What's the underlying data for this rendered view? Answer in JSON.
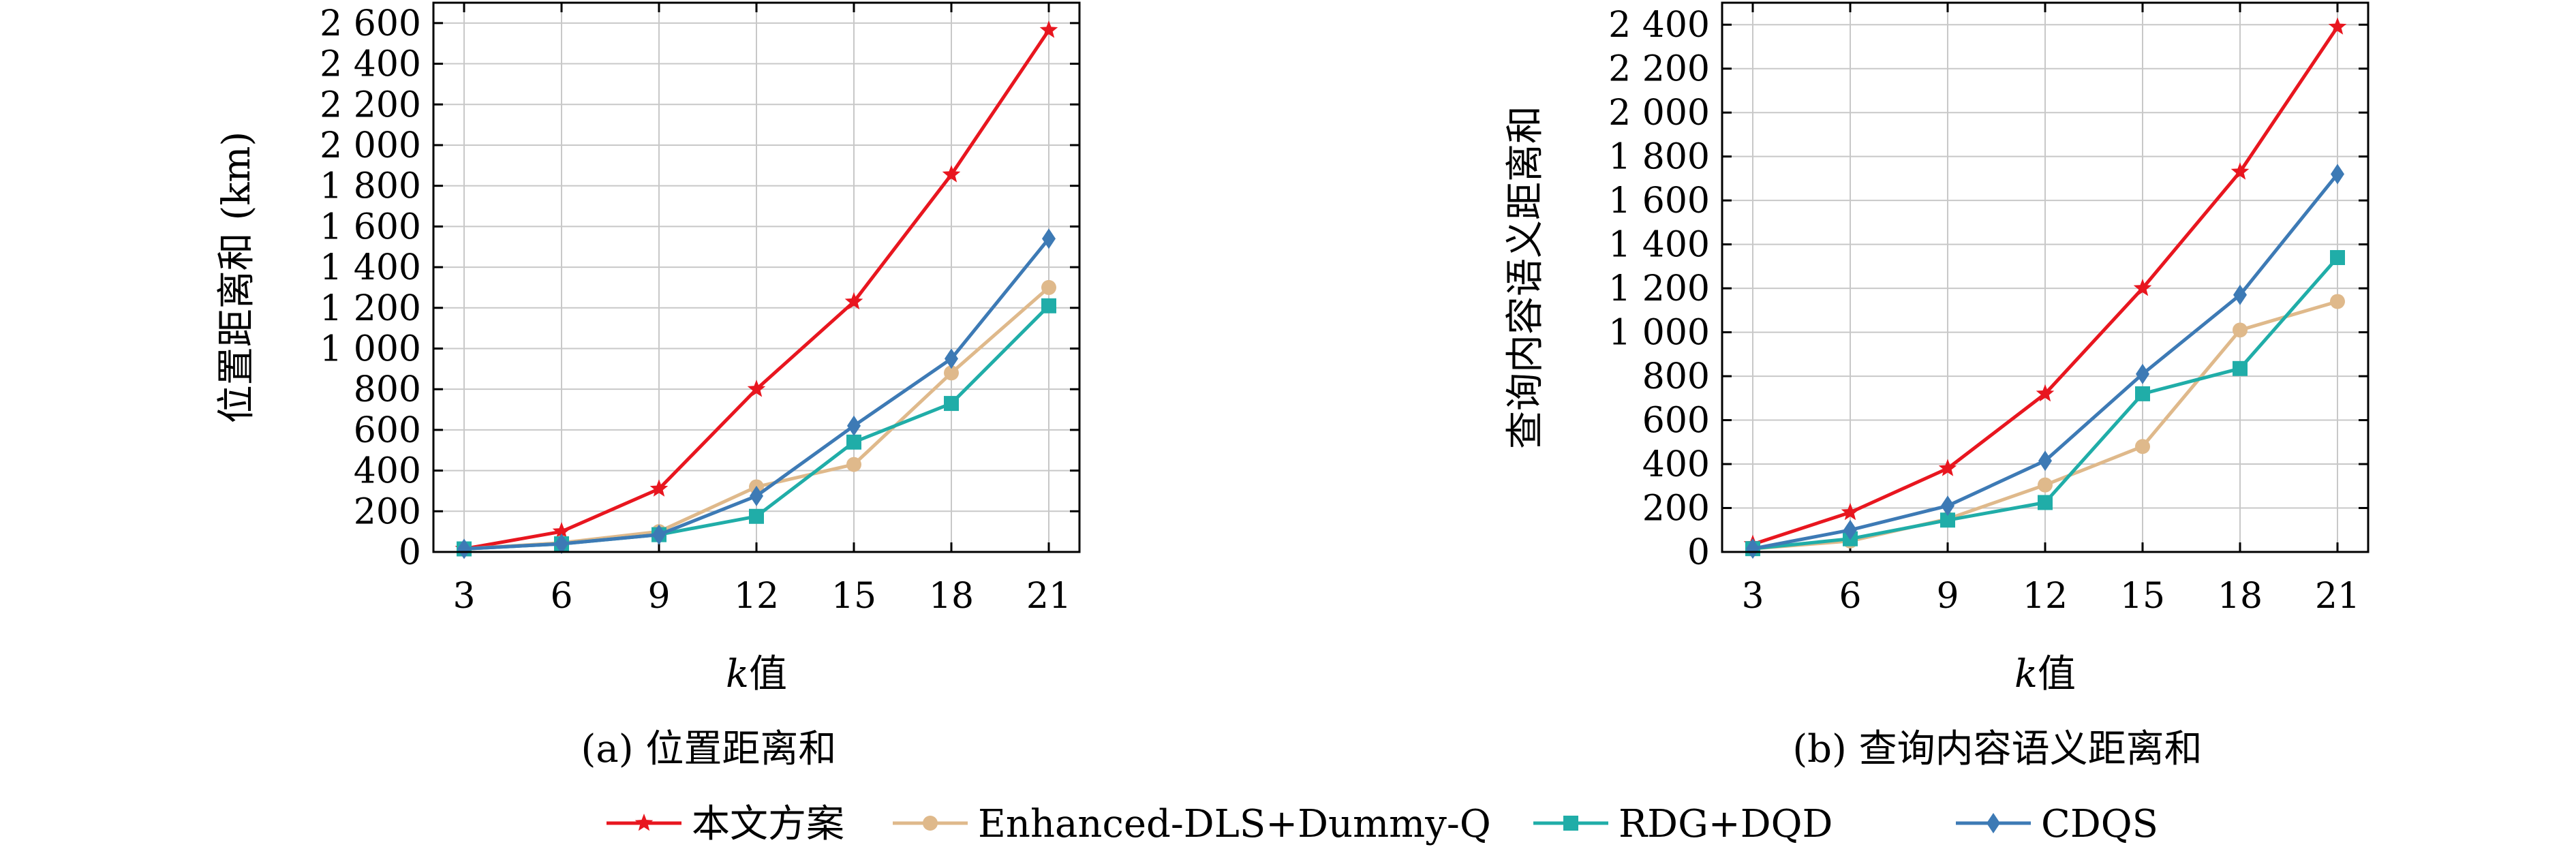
{
  "chart_data": [
    {
      "type": "line",
      "caption": "(a) 位置距离和",
      "xlabel_var": "k",
      "xlabel_suffix": "值",
      "ylabel": "位置距离和 (km)",
      "x": [
        3,
        6,
        9,
        12,
        15,
        18,
        21
      ],
      "ylim": [
        0,
        2700
      ],
      "yticks": [
        0,
        200,
        400,
        600,
        800,
        1000,
        1200,
        1400,
        1600,
        1800,
        2000,
        2200,
        2400,
        2600
      ],
      "ytick_labels": [
        "0",
        "200",
        "400",
        "600",
        "800",
        "1 000",
        "1 200",
        "1 400",
        "1 600",
        "1 800",
        "2 000",
        "2 200",
        "2 400",
        "2 600"
      ],
      "grid": true,
      "series": [
        {
          "name": "本文方案",
          "color": "#e8161f",
          "marker": "star",
          "values": [
            15,
            100,
            310,
            800,
            1230,
            1855,
            2565
          ]
        },
        {
          "name": "Enhanced-DLS+Dummy-Q",
          "color": "#dfb98b",
          "marker": "circle",
          "values": [
            15,
            45,
            100,
            320,
            430,
            880,
            1300
          ]
        },
        {
          "name": "RDG+DQD",
          "color": "#20ada8",
          "marker": "square",
          "values": [
            15,
            40,
            85,
            175,
            540,
            730,
            1210
          ]
        },
        {
          "name": "CDQS",
          "color": "#3d7ab5",
          "marker": "diamond",
          "values": [
            15,
            40,
            85,
            275,
            620,
            950,
            1540
          ]
        }
      ]
    },
    {
      "type": "line",
      "caption": "(b) 查询内容语义距离和",
      "xlabel_var": "k",
      "xlabel_suffix": "值",
      "ylabel": "查询内容语义距离和",
      "x": [
        3,
        6,
        9,
        12,
        15,
        18,
        21
      ],
      "ylim": [
        0,
        2500
      ],
      "yticks": [
        0,
        200,
        400,
        600,
        800,
        1000,
        1200,
        1400,
        1600,
        1800,
        2000,
        2200,
        2400
      ],
      "ytick_labels": [
        "0",
        "200",
        "400",
        "600",
        "800",
        "1 000",
        "1 200",
        "1 400",
        "1 600",
        "1 800",
        "2 000",
        "2 200",
        "2 400"
      ],
      "grid": true,
      "series": [
        {
          "name": "本文方案",
          "color": "#e8161f",
          "marker": "star",
          "values": [
            35,
            180,
            380,
            720,
            1200,
            1730,
            2390
          ]
        },
        {
          "name": "Enhanced-DLS+Dummy-Q",
          "color": "#dfb98b",
          "marker": "circle",
          "values": [
            15,
            50,
            150,
            305,
            480,
            1010,
            1140
          ]
        },
        {
          "name": "RDG+DQD",
          "color": "#20ada8",
          "marker": "square",
          "values": [
            15,
            60,
            145,
            225,
            720,
            835,
            1340
          ]
        },
        {
          "name": "CDQS",
          "color": "#3d7ab5",
          "marker": "diamond",
          "values": [
            15,
            100,
            210,
            415,
            810,
            1170,
            1720
          ]
        }
      ]
    }
  ],
  "legend": {
    "placement": "bottom-center",
    "items": [
      "本文方案",
      "Enhanced-DLS+Dummy-Q",
      "RDG+DQD",
      "CDQS"
    ]
  }
}
